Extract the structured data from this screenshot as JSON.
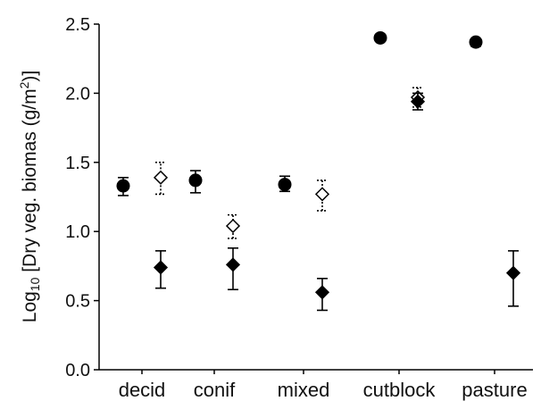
{
  "chart_data": {
    "type": "scatter",
    "title": "",
    "xlabel": "",
    "ylabel": {
      "prefix": "Log",
      "subscript": "10",
      "main": " [Dry veg. biomas (g/m",
      "superscript": "2",
      "suffix": ")]"
    },
    "categories": [
      "decid",
      "conif",
      "mixed",
      "cutblock",
      "pasture"
    ],
    "ylim": [
      0,
      2.5
    ],
    "yticks": [
      "0.0",
      "0.5",
      "1.0",
      "1.5",
      "2.0",
      "2.5"
    ],
    "grid": false,
    "legend": "none",
    "series": [
      {
        "marker": "circle-filled",
        "color": "#000000",
        "points": [
          {
            "category": "decid",
            "y": 1.33,
            "low": 1.26,
            "high": 1.39
          },
          {
            "category": "conif",
            "y": 1.37,
            "low": 1.28,
            "high": 1.44
          },
          {
            "category": "mixed",
            "y": 1.34,
            "low": 1.29,
            "high": 1.4
          },
          {
            "category": "cutblock",
            "y": 2.4,
            "low": 2.39,
            "high": 2.41
          },
          {
            "category": "pasture",
            "y": 2.37,
            "low": 2.34,
            "high": 2.39
          }
        ]
      },
      {
        "marker": "diamond-open",
        "color": "#000000",
        "errorbar": "dotted",
        "points": [
          {
            "category": "decid",
            "y": 1.39,
            "low": 1.27,
            "high": 1.5
          },
          {
            "category": "conif",
            "y": 1.04,
            "low": 0.95,
            "high": 1.12
          },
          {
            "category": "mixed",
            "y": 1.27,
            "low": 1.15,
            "high": 1.37
          },
          {
            "category": "cutblock",
            "y": 1.97,
            "low": 1.9,
            "high": 2.04
          }
        ]
      },
      {
        "marker": "diamond-filled",
        "color": "#000000",
        "errorbar": "solid",
        "points": [
          {
            "category": "decid",
            "y": 0.74,
            "low": 0.59,
            "high": 0.86
          },
          {
            "category": "conif",
            "y": 0.76,
            "low": 0.58,
            "high": 0.88
          },
          {
            "category": "mixed",
            "y": 0.56,
            "low": 0.43,
            "high": 0.66
          },
          {
            "category": "cutblock",
            "y": 1.94,
            "low": 1.88,
            "high": 2.0
          },
          {
            "category": "pasture",
            "y": 0.7,
            "low": 0.46,
            "high": 0.86
          }
        ]
      }
    ]
  }
}
